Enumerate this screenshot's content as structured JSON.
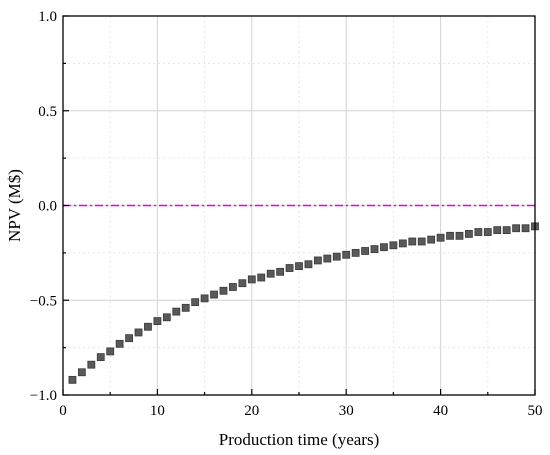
{
  "chart_data": {
    "type": "scatter",
    "title": "",
    "xlabel": "Production time (years)",
    "ylabel": "NPV (M$)",
    "xlim": [
      0,
      50
    ],
    "ylim": [
      -1.0,
      1.0
    ],
    "x_ticks": [
      0,
      10,
      20,
      30,
      40,
      50
    ],
    "x_tick_labels": [
      "0",
      "10",
      "20",
      "30",
      "40",
      "50"
    ],
    "y_ticks": [
      -1.0,
      -0.5,
      0.0,
      0.5,
      1.0
    ],
    "y_tick_labels": [
      "−1.0",
      "−0.5",
      "0.0",
      "0.5",
      "1.0"
    ],
    "grid": true,
    "legend": "none",
    "reference_line": {
      "y": 0.0,
      "color": "#e000e0",
      "style": "dash-dot"
    },
    "series": [
      {
        "marker": "square",
        "color": "#595959",
        "x": [
          1,
          2,
          3,
          4,
          5,
          6,
          7,
          8,
          9,
          10,
          11,
          12,
          13,
          14,
          15,
          16,
          17,
          18,
          19,
          20,
          21,
          22,
          23,
          24,
          25,
          26,
          27,
          28,
          29,
          30,
          31,
          32,
          33,
          34,
          35,
          36,
          37,
          38,
          39,
          40,
          41,
          42,
          43,
          44,
          45,
          46,
          47,
          48,
          49,
          50
        ],
        "y": [
          -0.92,
          -0.88,
          -0.84,
          -0.8,
          -0.77,
          -0.73,
          -0.7,
          -0.67,
          -0.64,
          -0.61,
          -0.59,
          -0.56,
          -0.54,
          -0.51,
          -0.49,
          -0.47,
          -0.45,
          -0.43,
          -0.41,
          -0.39,
          -0.38,
          -0.36,
          -0.35,
          -0.33,
          -0.32,
          -0.31,
          -0.29,
          -0.28,
          -0.27,
          -0.26,
          -0.25,
          -0.24,
          -0.23,
          -0.22,
          -0.21,
          -0.2,
          -0.19,
          -0.19,
          -0.18,
          -0.17,
          -0.16,
          -0.16,
          -0.15,
          -0.14,
          -0.14,
          -0.13,
          -0.13,
          -0.12,
          -0.12,
          -0.11
        ]
      }
    ]
  }
}
